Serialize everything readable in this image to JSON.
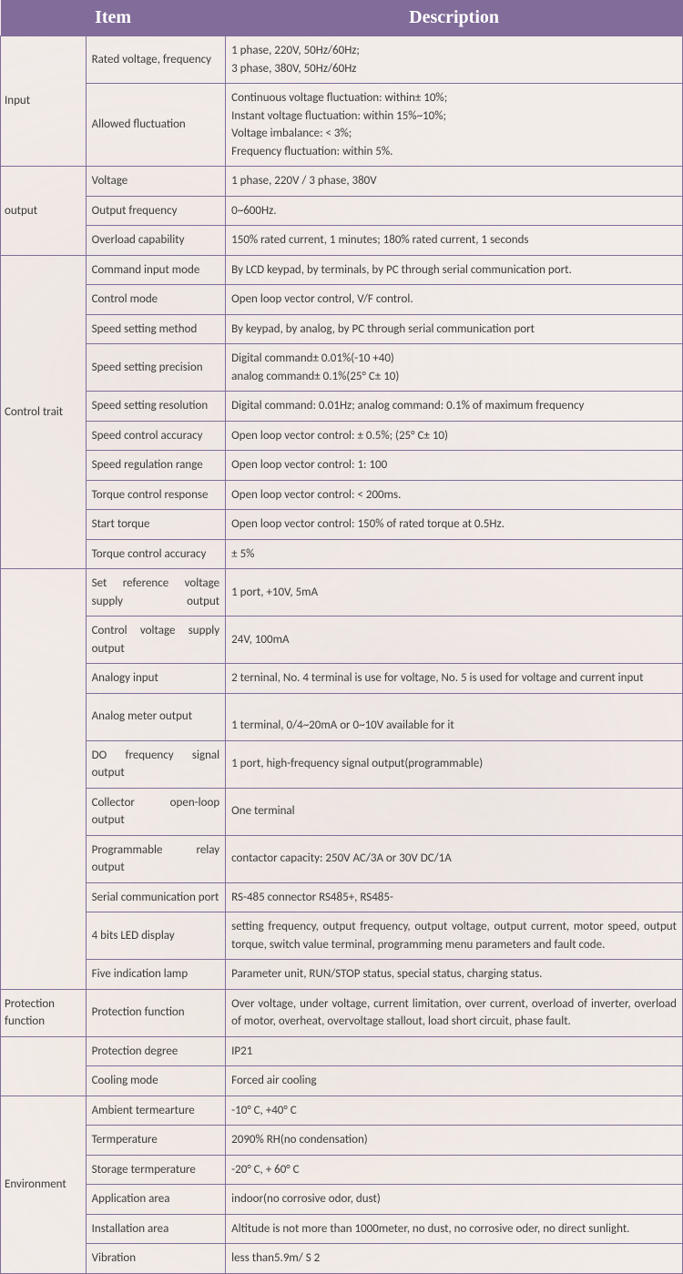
{
  "colors": {
    "header_bg": "#816c9a",
    "header_text": "#ffffff",
    "cell_border": "#816c9a",
    "cell_text": "#3a3a3a",
    "body_bg": "#f2ece8"
  },
  "header": {
    "item": "Item",
    "description": "Description"
  },
  "groups": [
    {
      "category": "Input",
      "rows": [
        {
          "param": "Rated voltage, frequency",
          "desc": [
            "1 phase, 220V, 50Hz/60Hz;",
            "3 phase, 380V, 50Hz/60Hz"
          ]
        },
        {
          "param": "Allowed fluctuation",
          "desc": [
            "Continuous voltage fluctuation: within± 10%;",
            "Instant voltage fluctuation: within 15%~10%;",
            "Voltage imbalance: < 3%;",
            "Frequency fluctuation: within 5%."
          ]
        }
      ]
    },
    {
      "category": "output",
      "rows": [
        {
          "param": "Voltage",
          "desc": [
            "1 phase, 220V    /    3 phase, 380V"
          ]
        },
        {
          "param": "Output frequency",
          "desc": [
            "0~600Hz."
          ]
        },
        {
          "param": "Overload capability",
          "desc": [
            "150% rated current, 1 minutes; 180% rated current, 1 seconds"
          ]
        }
      ]
    },
    {
      "category": "Control trait",
      "rows": [
        {
          "param": "Command input mode",
          "desc": [
            "By LCD keypad, by terminals, by PC through serial communication port."
          ]
        },
        {
          "param": "Control mode",
          "desc": [
            "Open loop vector control, V/F control."
          ]
        },
        {
          "param": "Speed setting method",
          "desc": [
            "By keypad, by analog, by PC through serial communication port"
          ]
        },
        {
          "param": "Speed setting precision",
          "desc": [
            "Digital command± 0.01%(-10 +40)",
            "analog command± 0.1%(25° C± 10)"
          ]
        },
        {
          "param": "Speed setting resolution",
          "desc": [
            "Digital command: 0.01Hz; analog command: 0.1% of maximum frequency"
          ]
        },
        {
          "param": "Speed control accuracy",
          "desc": [
            "Open loop vector control: ± 0.5%; (25° C± 10)"
          ]
        },
        {
          "param": "Speed regulation range",
          "desc": [
            "Open loop vector control: 1: 100"
          ]
        },
        {
          "param": "Torque control response",
          "desc": [
            "Open loop vector control: < 200ms."
          ]
        },
        {
          "param": "Start torque",
          "desc": [
            "Open loop vector control: 150% of rated torque at 0.5Hz."
          ]
        },
        {
          "param": "Torque control accuracy",
          "desc": [
            "± 5%"
          ]
        }
      ]
    },
    {
      "category": "",
      "rows": [
        {
          "param": "Set reference voltage supply output",
          "param_justify": true,
          "desc": [
            "1 port, +10V, 5mA"
          ]
        },
        {
          "param": "Control voltage supply output",
          "param_justify": true,
          "desc": [
            "24V, 100mA"
          ]
        },
        {
          "param": "Analogy input",
          "desc": [
            "2 terninal, No. 4 terminal is use for voltage, No. 5 is used for voltage and current input"
          ]
        },
        {
          "param": "Analog meter output",
          "desc": [
            "",
            "1 terminal, 0/4~20mA or 0~10V available for it"
          ]
        },
        {
          "param": "DO frequency signal output",
          "param_justify": true,
          "desc": [
            "1 port, high-frequency signal output(programmable)"
          ]
        },
        {
          "param": "Collector open-loop output",
          "param_justify": true,
          "desc": [
            "One terminal"
          ]
        },
        {
          "param": "Programmable relay output",
          "param_justify": true,
          "desc": [
            "contactor capacity: 250V AC/3A or 30V DC/1A"
          ]
        },
        {
          "param": "Serial communication port",
          "desc": [
            "RS-485 connector RS485+, RS485-"
          ]
        },
        {
          "param": "4 bits LED display",
          "desc_justify": true,
          "desc": [
            "setting frequency, output frequency, output voltage, output current, motor speed, output torque, switch value terminal, programming menu parameters and fault code."
          ]
        },
        {
          "param": "Five indication lamp",
          "desc": [
            "Parameter unit, RUN/STOP status, special status, charging status."
          ]
        }
      ]
    },
    {
      "category": "Protection function",
      "rows": [
        {
          "param": "Protection function",
          "desc_justify": true,
          "desc": [
            "Over voltage, under voltage, current limitation, over current, overload of inverter, overload of motor, overheat, overvoltage stallout, load short circuit, phase fault."
          ]
        }
      ]
    },
    {
      "category": "",
      "rows": [
        {
          "param": "Protection degree",
          "desc": [
            "IP21"
          ]
        },
        {
          "param": "Cooling mode",
          "desc": [
            "Forced air cooling"
          ]
        }
      ]
    },
    {
      "category": "Environment",
      "rows": [
        {
          "param": "Ambient termearture",
          "desc": [
            "-10° C, +40° C"
          ]
        },
        {
          "param": "Termperature",
          "desc": [
            "2090% RH(no condensation)"
          ]
        },
        {
          "param": "Storage termperature",
          "desc": [
            "-20° C, + 60° C"
          ]
        },
        {
          "param": "Application area",
          "desc": [
            "indoor(no corrosive odor, dust)"
          ]
        },
        {
          "param": "Installation area",
          "desc_justify": true,
          "desc": [
            "Altitude is not more than 1000meter, no dust, no corrosive oder, no direct sunlight."
          ]
        },
        {
          "param": "Vibration",
          "desc": [
            "less than5.9m/ S 2"
          ]
        }
      ]
    }
  ]
}
